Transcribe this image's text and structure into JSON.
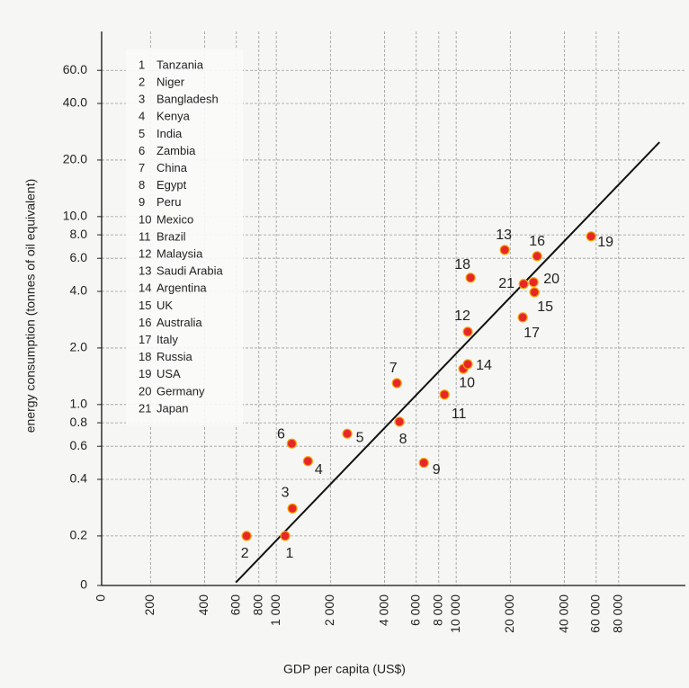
{
  "chart_data": {
    "type": "scatter",
    "xlabel": "GDP per capita (US$)",
    "ylabel": "energy consumption (tonnes of oil equivalent)",
    "xscale": "log",
    "yscale": "log",
    "grid": true,
    "xlim": [
      107,
      188000
    ],
    "ylim": [
      0.109,
      96.6
    ],
    "xticks": [
      0,
      200,
      400,
      600,
      800,
      {
        "value": 1000,
        "label": "1 000"
      },
      {
        "value": 2000,
        "label": "2 000"
      },
      {
        "value": 4000,
        "label": "4 000"
      },
      {
        "value": 6000,
        "label": "6 000"
      },
      {
        "value": 8000,
        "label": "8 000"
      },
      {
        "value": 10000,
        "label": "10 000"
      },
      {
        "value": 20000,
        "label": "20 000"
      },
      {
        "value": 40000,
        "label": "40 000"
      },
      {
        "value": 60000,
        "label": "60 000"
      },
      {
        "value": 80000,
        "label": "80 000"
      }
    ],
    "yticks": [
      0,
      0.2,
      0.4,
      0.6,
      0.8,
      {
        "value": 1,
        "label": "1.0"
      },
      {
        "value": 2,
        "label": "2.0"
      },
      {
        "value": 4,
        "label": "4.0"
      },
      {
        "value": 6,
        "label": "6.0"
      },
      {
        "value": 8,
        "label": "8.0"
      },
      {
        "value": 10,
        "label": "10.0"
      },
      {
        "value": 20,
        "label": "20.0"
      },
      {
        "value": 40,
        "label": "40.0"
      },
      {
        "value": 60,
        "label": "60.0"
      }
    ],
    "series": [
      {
        "color": "#e8262a",
        "edge_color": "#f4a300",
        "ids": [
          "1",
          "2",
          "3",
          "4",
          "5",
          "6",
          "7",
          "8",
          "9",
          "10",
          "11",
          "12",
          "13",
          "14",
          "15",
          "16",
          "17",
          "18",
          "19",
          "20",
          "21"
        ],
        "names": [
          "Tanzania",
          "Niger",
          "Bangladesh",
          "Kenya",
          "India",
          "Zambia",
          "China",
          "Egypt",
          "Peru",
          "Mexico",
          "Brazil",
          "Malaysia",
          "Saudi Arabia",
          "Argentina",
          "UK",
          "Australia",
          "Italy",
          "Russia",
          "USA",
          "Germany",
          "Japan"
        ],
        "x": [
          1120,
          684,
          1230,
          1500,
          2480,
          1220,
          4680,
          4840,
          6610,
          10960,
          8610,
          11600,
          18620,
          11600,
          27230,
          28180,
          23440,
          12020,
          56230,
          26920,
          23710
        ],
        "values": [
          0.2,
          0.2,
          0.28,
          0.5,
          0.7,
          0.62,
          1.3,
          0.81,
          0.49,
          1.55,
          1.13,
          2.44,
          6.65,
          1.64,
          3.96,
          6.16,
          2.91,
          4.73,
          7.85,
          4.48,
          4.38
        ]
      }
    ],
    "trend_line": {
      "color": "#111111",
      "x": [
        596,
        135000
      ],
      "values": [
        0.113,
        24.9
      ]
    }
  }
}
